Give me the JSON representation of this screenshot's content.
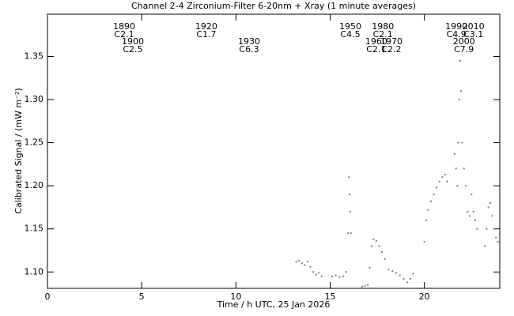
{
  "chart_data": {
    "type": "scatter",
    "title": "Channel 2-4   Zirconium-Filter   6-20nm + Xray   (1 minute averages)",
    "x_label": "Time / h UTC, 25 Jan 2026",
    "y_label": "Calibrated Signal / (mW m⁻²)",
    "xlim": [
      0,
      24
    ],
    "xticks": [
      0,
      5,
      10,
      15,
      20
    ],
    "ylim": [
      1.081,
      1.399
    ],
    "yticks": [
      {
        "value": 1.1,
        "label": "1.10"
      },
      1.15,
      {
        "value": 1.2,
        "label": "1.20"
      },
      1.25,
      {
        "value": 1.3,
        "label": "1.30"
      },
      1.35
    ],
    "series": [
      {
        "color": "#808080",
        "x": [
          13.2,
          13.35,
          13.5,
          13.65,
          13.8,
          13.95,
          14.1,
          14.25,
          14.4,
          14.55,
          15.1,
          15.3,
          15.5,
          15.7,
          15.85,
          15.95,
          16.0,
          16.03,
          16.06,
          16.1,
          16.7,
          16.85,
          17.0,
          17.1,
          17.2,
          17.3,
          17.45,
          17.6,
          17.75,
          17.9,
          18.1,
          18.3,
          18.5,
          18.7,
          18.9,
          19.1,
          19.25,
          19.4,
          20.0,
          20.1,
          20.2,
          20.35,
          20.5,
          20.65,
          20.8,
          20.95,
          21.1,
          21.2,
          21.6,
          21.68,
          21.75,
          21.8,
          21.85,
          21.9,
          21.95,
          22.0,
          22.1,
          22.2,
          22.3,
          22.4,
          22.5,
          22.6,
          22.7,
          22.8,
          23.2,
          23.3,
          23.4,
          23.5,
          23.6,
          23.7,
          23.8,
          23.9,
          24.0
        ],
        "values": [
          1.112,
          1.113,
          1.11,
          1.108,
          1.112,
          1.106,
          1.1,
          1.097,
          1.099,
          1.095,
          1.095,
          1.096,
          1.094,
          1.095,
          1.1,
          1.145,
          1.21,
          1.19,
          1.17,
          1.145,
          1.083,
          1.084,
          1.085,
          1.105,
          1.13,
          1.138,
          1.136,
          1.13,
          1.123,
          1.115,
          1.103,
          1.101,
          1.099,
          1.096,
          1.092,
          1.088,
          1.092,
          1.098,
          1.135,
          1.16,
          1.172,
          1.182,
          1.19,
          1.198,
          1.205,
          1.21,
          1.213,
          1.205,
          1.237,
          1.22,
          1.2,
          1.25,
          1.3,
          1.345,
          1.31,
          1.25,
          1.22,
          1.2,
          1.17,
          1.165,
          1.19,
          1.17,
          1.16,
          1.15,
          1.13,
          1.15,
          1.175,
          1.18,
          1.165,
          1.15,
          1.14,
          1.135,
          1.125
        ]
      }
    ],
    "annotations": [
      {
        "x": 4.07,
        "text": "1890",
        "class": "C2.1"
      },
      {
        "x": 4.53,
        "text": "1900",
        "class": "C2.5"
      },
      {
        "x": 8.43,
        "text": "1920",
        "class": "C1.7"
      },
      {
        "x": 10.7,
        "text": "1930",
        "class": "C6.3"
      },
      {
        "x": 16.07,
        "text": "1950",
        "class": "C4.5"
      },
      {
        "x": 17.45,
        "text": "1960",
        "class": "C2.1"
      },
      {
        "x": 17.8,
        "text": "1980",
        "class": "C2.1"
      },
      {
        "x": 18.25,
        "text": "1970",
        "class": "C2.2"
      },
      {
        "x": 21.7,
        "text": "1990",
        "class": "C4.9"
      },
      {
        "x": 22.1,
        "text": "2000",
        "class": "C7.9"
      },
      {
        "x": 22.6,
        "text": "2010",
        "class": "C3.1"
      }
    ]
  }
}
